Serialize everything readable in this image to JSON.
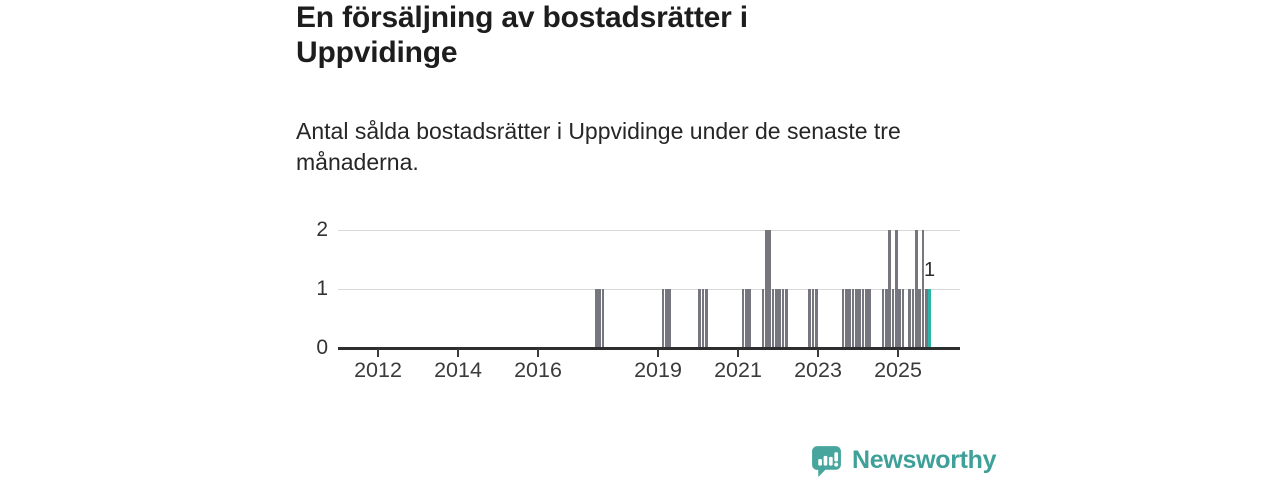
{
  "header": {
    "title": "En försäljning av bostadsrätter i Uppvidinge",
    "subtitle": "Antal sålda bostadsrätter i Uppvidinge under de senaste tre månaderna."
  },
  "branding": {
    "name": "Newsworthy",
    "icon": "newsworthy-speech-bubble-chart-icon",
    "text_color": "#3EA098",
    "icon_color": "#47A59E"
  },
  "chart_data": {
    "type": "bar",
    "title": "En försäljning av bostadsrätter i Uppvidinge",
    "xlabel": "",
    "ylabel": "",
    "ylim": [
      0,
      2
    ],
    "y_ticks": [
      0,
      1,
      2
    ],
    "x_ticks": [
      2012,
      2014,
      2016,
      2019,
      2021,
      2023,
      2025
    ],
    "x_domain": [
      "2011-01",
      "2026-06"
    ],
    "grid": "horizontal",
    "legend": "none",
    "bar_color": "#76767E",
    "highlight_color": "#2BB4A8",
    "points": [
      {
        "d": "2017-06",
        "v": 1
      },
      {
        "d": "2017-07",
        "v": 1
      },
      {
        "d": "2017-08",
        "v": 1
      },
      {
        "d": "2019-02",
        "v": 1
      },
      {
        "d": "2019-03",
        "v": 1
      },
      {
        "d": "2019-04",
        "v": 1
      },
      {
        "d": "2020-01",
        "v": 1
      },
      {
        "d": "2020-02",
        "v": 1
      },
      {
        "d": "2020-03",
        "v": 1
      },
      {
        "d": "2021-02",
        "v": 1
      },
      {
        "d": "2021-03",
        "v": 1
      },
      {
        "d": "2021-04",
        "v": 1
      },
      {
        "d": "2021-08",
        "v": 1
      },
      {
        "d": "2021-09",
        "v": 2
      },
      {
        "d": "2021-10",
        "v": 2
      },
      {
        "d": "2021-11",
        "v": 1
      },
      {
        "d": "2021-12",
        "v": 1
      },
      {
        "d": "2022-01",
        "v": 1
      },
      {
        "d": "2022-02",
        "v": 1
      },
      {
        "d": "2022-03",
        "v": 1
      },
      {
        "d": "2022-10",
        "v": 1
      },
      {
        "d": "2022-11",
        "v": 1
      },
      {
        "d": "2022-12",
        "v": 1
      },
      {
        "d": "2023-08",
        "v": 1
      },
      {
        "d": "2023-09",
        "v": 1
      },
      {
        "d": "2023-10",
        "v": 1
      },
      {
        "d": "2023-11",
        "v": 1
      },
      {
        "d": "2023-12",
        "v": 1
      },
      {
        "d": "2024-01",
        "v": 1
      },
      {
        "d": "2024-02",
        "v": 1
      },
      {
        "d": "2024-03",
        "v": 1
      },
      {
        "d": "2024-04",
        "v": 1
      },
      {
        "d": "2024-08",
        "v": 1
      },
      {
        "d": "2024-09",
        "v": 1
      },
      {
        "d": "2024-10",
        "v": 2
      },
      {
        "d": "2024-11",
        "v": 1
      },
      {
        "d": "2024-12",
        "v": 2
      },
      {
        "d": "2025-01",
        "v": 1
      },
      {
        "d": "2025-02",
        "v": 1
      },
      {
        "d": "2025-04",
        "v": 1
      },
      {
        "d": "2025-05",
        "v": 1
      },
      {
        "d": "2025-06",
        "v": 2
      },
      {
        "d": "2025-07",
        "v": 1
      },
      {
        "d": "2025-08",
        "v": 2
      },
      {
        "d": "2025-09",
        "v": 1
      },
      {
        "d": "2025-10",
        "v": 1,
        "highlight": true,
        "label": "1"
      }
    ]
  }
}
